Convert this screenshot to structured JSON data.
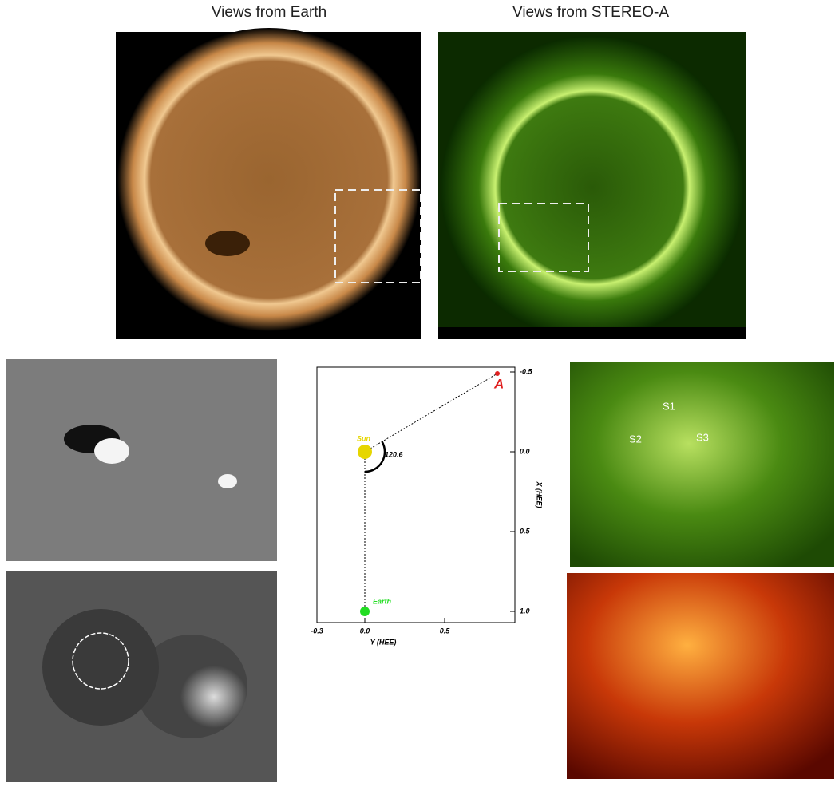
{
  "headers": {
    "earth": "Views from Earth",
    "stereo": "Views from STEREO-A"
  },
  "orbit_plot": {
    "type": "scatter",
    "x_label": "Y (HEE)",
    "y_label": "X (HEE)",
    "xlim": [
      -0.3,
      0.94
    ],
    "xticks": [
      -0.3,
      {
        "value": 0,
        "label": "0.0"
      },
      0.5
    ],
    "ylim": [
      -0.53,
      1.07
    ],
    "yticks": [
      -0.5,
      {
        "value": 0,
        "label": "0.0"
      },
      0.5,
      {
        "value": 1,
        "label": "1.0"
      }
    ],
    "points": [
      {
        "name": "Sun",
        "color": "#e6d600",
        "x": 0,
        "y": 0
      },
      {
        "name": "Earth",
        "color": "#22dd22",
        "x": 0,
        "y": 1.0
      },
      {
        "name": "A",
        "color": "#e02020",
        "x": 0.83,
        "y": -0.49
      }
    ],
    "angle_label": "120.6"
  },
  "annotations": [
    "S1",
    "S2",
    "S3"
  ]
}
